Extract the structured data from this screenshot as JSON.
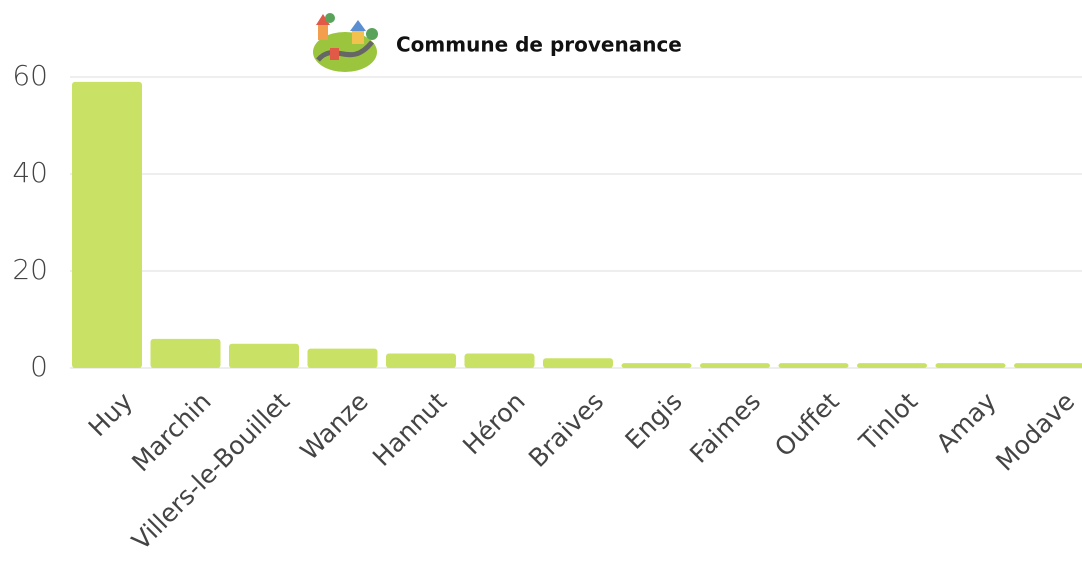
{
  "chart_data": {
    "type": "bar",
    "title": "Commune de provenance",
    "categories": [
      "Huy",
      "Marchin",
      "Villers-le-Bouillet",
      "Wanze",
      "Hannut",
      "Héron",
      "Braives",
      "Engis",
      "Faimes",
      "Ouffet",
      "Tinlot",
      "Amay",
      "Modave"
    ],
    "values": [
      59,
      6,
      5,
      4,
      3,
      3,
      2,
      1,
      1,
      1,
      1,
      1,
      1
    ],
    "color": "#c9e265",
    "ylim": [
      0,
      60
    ],
    "yticks": [
      0,
      20,
      40,
      60
    ],
    "grid": true
  }
}
